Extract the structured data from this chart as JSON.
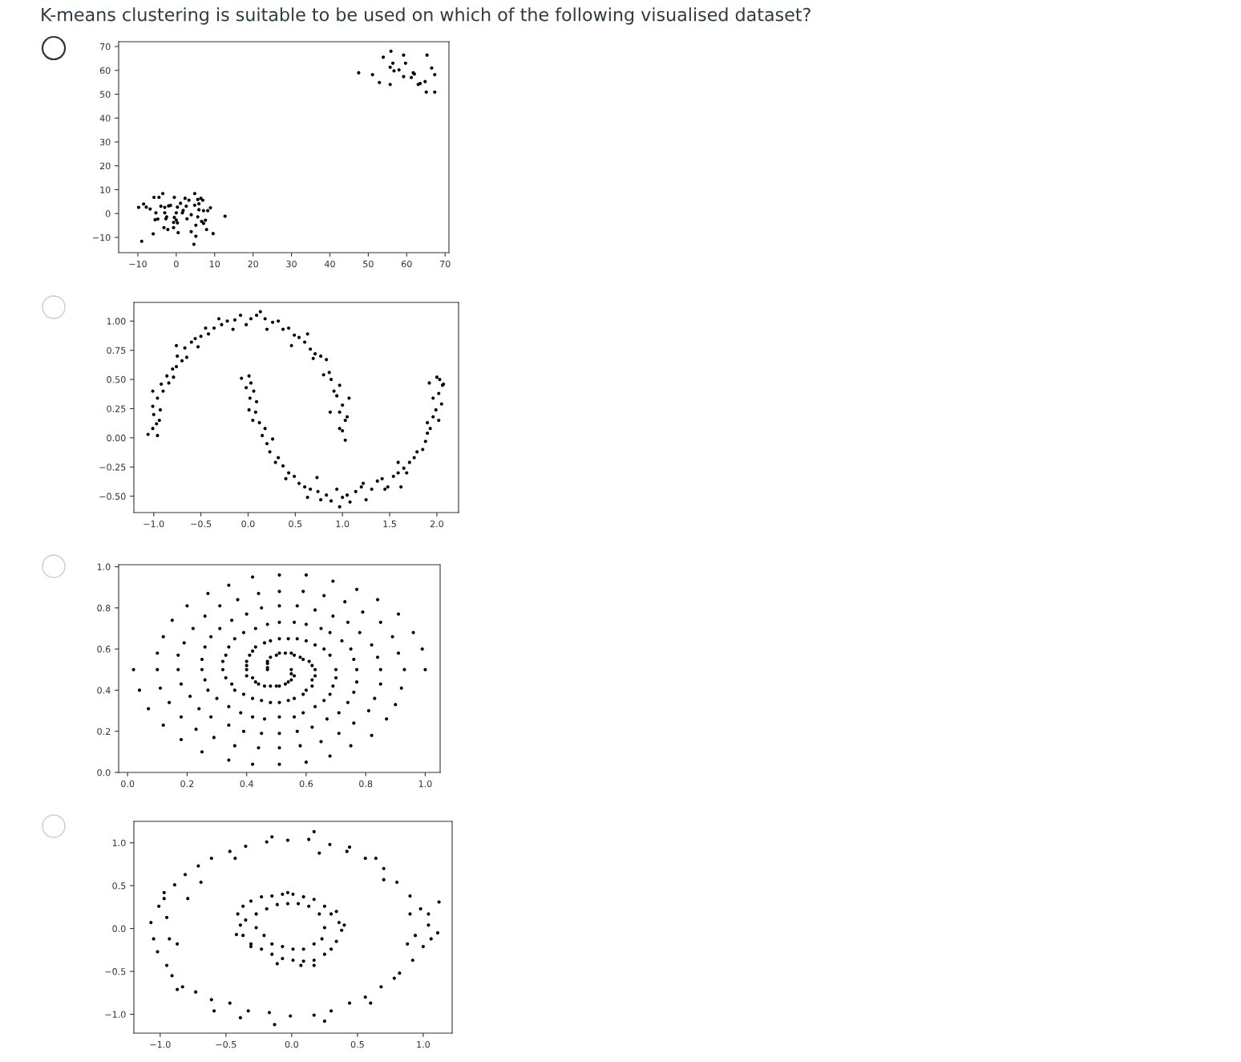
{
  "chart_data": [
    {
      "type": "scatter",
      "title": "K-means clustering is suitable to be used on which of the following visualised dataset?",
      "color": "#000000",
      "marker": "circle",
      "xlim": [
        -15.0,
        71.0
      ],
      "ylim": [
        -16.4,
        72.0
      ],
      "xticks": [
        {
          "value": -10,
          "label": "−10"
        },
        {
          "value": 0,
          "label": "0"
        },
        {
          "value": 10,
          "label": "10"
        },
        {
          "value": 20,
          "label": "20"
        },
        {
          "value": 30,
          "label": "30"
        },
        {
          "value": 40,
          "label": "40"
        },
        {
          "value": 50,
          "label": "50"
        },
        {
          "value": 60,
          "label": "60"
        },
        {
          "value": 70,
          "label": "70"
        }
      ],
      "yticks": [
        {
          "value": -10,
          "label": "−10"
        },
        {
          "value": 0,
          "label": "0"
        },
        {
          "value": 10,
          "label": "10"
        },
        {
          "value": 20,
          "label": "20"
        },
        {
          "value": 30,
          "label": "30"
        },
        {
          "value": 40,
          "label": "40"
        },
        {
          "value": 50,
          "label": "50"
        },
        {
          "value": 60,
          "label": "60"
        },
        {
          "value": 70,
          "label": "70"
        }
      ],
      "x": [
        47.5,
        51.1,
        52.9,
        53.9,
        55.7,
        55.7,
        55.9,
        56.4,
        56.7,
        58.0,
        59.2,
        59.2,
        59.7,
        61.2,
        61.7,
        62.0,
        63.0,
        63.5,
        64.8,
        65.1,
        65.3,
        66.5,
        67.3,
        67.3,
        -9.8,
        -9.0,
        -8.5,
        -7.8,
        -6.8,
        -6.0,
        -5.8,
        -5.5,
        -5.3,
        -4.8,
        -4.5,
        -4.0,
        -3.5,
        -3.2,
        -3.0,
        -3.0,
        -2.7,
        -2.5,
        -2.2,
        -2.0,
        -1.5,
        -0.7,
        -0.5,
        -0.5,
        -0.7,
        0.0,
        0.3,
        0.0,
        0.3,
        0.5,
        1.1,
        1.6,
        1.8,
        2.3,
        2.6,
        2.8,
        3.3,
        3.9,
        3.9,
        4.8,
        4.8,
        5.1,
        5.1,
        4.6,
        5.6,
        5.6,
        5.9,
        6.4,
        5.9,
        6.9,
        6.6,
        7.1,
        7.1,
        7.6,
        7.9,
        8.2,
        8.9,
        9.6,
        12.7
      ],
      "values": [
        59.0,
        58.2,
        54.9,
        65.5,
        61.3,
        54.1,
        68.0,
        63.0,
        59.8,
        60.2,
        66.4,
        57.4,
        63.0,
        57.0,
        59.0,
        58.5,
        54.1,
        54.5,
        55.3,
        50.9,
        66.4,
        61.0,
        58.2,
        50.9,
        2.6,
        -11.6,
        4.0,
        2.7,
        1.9,
        -8.5,
        6.8,
        -2.6,
        0.3,
        -2.3,
        6.8,
        3.1,
        8.4,
        -5.9,
        0.3,
        2.6,
        -2.2,
        -1.4,
        -6.7,
        3.2,
        3.4,
        -5.9,
        6.8,
        -1.6,
        -3.7,
        0.3,
        2.7,
        -2.7,
        -3.9,
        -8.0,
        4.3,
        0.3,
        1.3,
        6.4,
        3.1,
        -2.2,
        5.6,
        -0.5,
        -7.6,
        8.4,
        3.5,
        -4.9,
        -9.5,
        -12.9,
        5.9,
        -1.4,
        4.1,
        6.4,
        1.6,
        5.6,
        -3.3,
        -4.1,
        1.2,
        -2.8,
        -6.7,
        1.2,
        2.4,
        -8.4,
        -1.1
      ]
    },
    {
      "type": "scatter",
      "color": "#000000",
      "marker": "circle",
      "xlim": [
        -1.21,
        2.23
      ],
      "ylim": [
        -0.64,
        1.16
      ],
      "xticks": [
        {
          "value": -1.0,
          "label": "−1.0"
        },
        {
          "value": -0.5,
          "label": "−0.5"
        },
        {
          "value": 0.0,
          "label": "0.0"
        },
        {
          "value": 0.5,
          "label": "0.5"
        },
        {
          "value": 1.0,
          "label": "1.0"
        },
        {
          "value": 1.5,
          "label": "1.5"
        },
        {
          "value": 2.0,
          "label": "2.0"
        }
      ],
      "yticks": [
        {
          "value": -0.5,
          "label": "−0.50"
        },
        {
          "value": -0.25,
          "label": "−0.25"
        },
        {
          "value": 0.0,
          "label": "0.00"
        },
        {
          "value": 0.25,
          "label": "0.25"
        },
        {
          "value": 0.5,
          "label": "0.50"
        },
        {
          "value": 0.75,
          "label": "0.75"
        },
        {
          "value": 1.0,
          "label": "1.00"
        }
      ],
      "x": [
        -1.06,
        -1.01,
        -0.96,
        -0.97,
        -1.0,
        -0.94,
        -1.01,
        -0.93,
        -0.96,
        -0.9,
        -1.01,
        -0.92,
        -0.84,
        -0.86,
        -0.8,
        -0.79,
        -0.76,
        -0.7,
        -0.75,
        -0.65,
        -0.67,
        -0.6,
        -0.76,
        -0.56,
        -0.5,
        -0.53,
        -0.45,
        -0.42,
        -0.36,
        -0.28,
        -0.31,
        -0.22,
        -0.16,
        -0.14,
        -0.08,
        -0.02,
        0.03,
        0.09,
        0.13,
        0.18,
        0.2,
        0.26,
        0.32,
        0.37,
        0.43,
        0.49,
        0.46,
        0.54,
        0.6,
        0.63,
        0.66,
        0.71,
        0.69,
        0.77,
        0.83,
        0.8,
        0.86,
        0.88,
        0.91,
        0.97,
        0.94,
        1.07,
        1.0,
        0.87,
        0.97,
        1.03,
        1.0,
        1.03,
        0.97,
        1.05,
        -0.07,
        0.01,
        0.03,
        -0.02,
        0.06,
        0.02,
        0.09,
        0.01,
        0.08,
        0.05,
        0.12,
        0.18,
        0.15,
        0.2,
        0.26,
        0.23,
        0.32,
        0.29,
        0.37,
        0.43,
        0.4,
        0.49,
        0.54,
        0.6,
        0.66,
        0.63,
        0.74,
        0.77,
        0.83,
        0.88,
        0.94,
        1.0,
        1.08,
        1.05,
        1.14,
        1.2,
        1.25,
        1.22,
        1.31,
        1.37,
        1.42,
        1.48,
        1.54,
        1.59,
        1.62,
        1.65,
        1.71,
        1.76,
        1.79,
        1.85,
        1.88,
        1.9,
        1.93,
        1.9,
        1.96,
        2.02,
        1.99,
        2.05,
        1.96,
        2.02,
        2.06,
        2.03,
        1.92,
        2.0,
        2.07,
        1.59,
        1.68,
        1.45,
        0.97,
        0.73
      ],
      "values": [
        0.03,
        0.08,
        0.02,
        0.12,
        0.2,
        0.15,
        0.27,
        0.24,
        0.34,
        0.4,
        0.4,
        0.46,
        0.47,
        0.53,
        0.59,
        0.52,
        0.61,
        0.66,
        0.7,
        0.69,
        0.77,
        0.82,
        0.79,
        0.85,
        0.87,
        0.78,
        0.94,
        0.89,
        0.94,
        0.97,
        1.02,
        1.0,
        0.93,
        1.01,
        1.05,
        0.97,
        1.02,
        1.05,
        1.08,
        1.02,
        0.93,
        0.99,
        1.0,
        0.93,
        0.94,
        0.88,
        0.79,
        0.86,
        0.82,
        0.89,
        0.76,
        0.72,
        0.68,
        0.7,
        0.67,
        0.54,
        0.56,
        0.5,
        0.4,
        0.45,
        0.36,
        0.34,
        0.28,
        0.22,
        0.22,
        0.15,
        0.06,
        -0.02,
        0.08,
        0.18,
        0.51,
        0.53,
        0.47,
        0.43,
        0.4,
        0.34,
        0.31,
        0.24,
        0.22,
        0.15,
        0.13,
        0.08,
        0.02,
        -0.05,
        -0.01,
        -0.12,
        -0.17,
        -0.21,
        -0.24,
        -0.3,
        -0.35,
        -0.33,
        -0.39,
        -0.42,
        -0.44,
        -0.51,
        -0.46,
        -0.53,
        -0.49,
        -0.54,
        -0.44,
        -0.51,
        -0.55,
        -0.49,
        -0.46,
        -0.42,
        -0.53,
        -0.39,
        -0.44,
        -0.37,
        -0.35,
        -0.42,
        -0.33,
        -0.3,
        -0.42,
        -0.26,
        -0.21,
        -0.17,
        -0.12,
        -0.1,
        -0.03,
        0.04,
        0.08,
        0.13,
        0.18,
        0.15,
        0.24,
        0.29,
        0.34,
        0.38,
        0.45,
        0.5,
        0.47,
        0.52,
        0.46,
        -0.21,
        -0.3,
        -0.44,
        -0.59,
        -0.34
      ]
    },
    {
      "type": "scatter",
      "color": "#000000",
      "marker": "circle",
      "xlim": [
        -0.03,
        1.05
      ],
      "ylim": [
        0.0,
        1.01
      ],
      "xticks": [
        {
          "value": 0.0,
          "label": "0.0"
        },
        {
          "value": 0.2,
          "label": "0.2"
        },
        {
          "value": 0.4,
          "label": "0.4"
        },
        {
          "value": 0.6,
          "label": "0.6"
        },
        {
          "value": 0.8,
          "label": "0.8"
        },
        {
          "value": 1.0,
          "label": "1.0"
        }
      ],
      "yticks": [
        {
          "value": 0.0,
          "label": "0.0"
        },
        {
          "value": 0.2,
          "label": "0.2"
        },
        {
          "value": 0.4,
          "label": "0.4"
        },
        {
          "value": 0.6,
          "label": "0.6"
        },
        {
          "value": 0.8,
          "label": "0.8"
        },
        {
          "value": 1.0,
          "label": "1.0"
        }
      ],
      "x": [
        0.42,
        0.51,
        0.6,
        0.69,
        0.34,
        0.77,
        0.27,
        0.44,
        0.51,
        0.59,
        0.66,
        0.84,
        0.37,
        0.73,
        0.2,
        0.31,
        0.45,
        0.51,
        0.57,
        0.63,
        0.79,
        0.4,
        0.69,
        0.91,
        0.15,
        0.26,
        0.35,
        0.85,
        0.47,
        0.51,
        0.56,
        0.6,
        0.74,
        0.22,
        0.31,
        0.43,
        0.65,
        0.96,
        0.39,
        0.68,
        0.78,
        0.12,
        0.28,
        0.36,
        0.89,
        0.19,
        0.48,
        0.51,
        0.54,
        0.57,
        0.6,
        0.72,
        0.82,
        0.46,
        0.43,
        0.34,
        0.63,
        0.26,
        0.42,
        0.66,
        0.75,
        0.99,
        0.1,
        0.41,
        0.33,
        0.68,
        0.91,
        0.17,
        0.51,
        0.53,
        0.55,
        0.56,
        0.58,
        0.59,
        0.61,
        0.84,
        0.5,
        0.48,
        0.47,
        0.47,
        0.47,
        0.47,
        0.25,
        0.4,
        0.32,
        0.62,
        0.76,
        0.02,
        0.1,
        0.17,
        0.25,
        0.32,
        0.4,
        0.63,
        0.7,
        0.77,
        0.85,
        0.93,
        1.0,
        0.55,
        0.55,
        0.56,
        0.55,
        0.54,
        0.53,
        0.4,
        0.4,
        0.63,
        0.7,
        0.62,
        0.33,
        0.26,
        0.18,
        0.11,
        0.04,
        0.85,
        0.92,
        0.77,
        0.42,
        0.43,
        0.44,
        0.46,
        0.48,
        0.5,
        0.51,
        0.62,
        0.6,
        0.35,
        0.36,
        0.39,
        0.42,
        0.45,
        0.48,
        0.51,
        0.54,
        0.56,
        0.59,
        0.69,
        0.68,
        0.27,
        0.21,
        0.14,
        0.07,
        0.76,
        0.83,
        0.9,
        0.3,
        0.34,
        0.38,
        0.42,
        0.46,
        0.51,
        0.56,
        0.59,
        0.63,
        0.66,
        0.74,
        0.24,
        0.18,
        0.12,
        0.71,
        0.81,
        0.87,
        0.28,
        0.34,
        0.39,
        0.45,
        0.51,
        0.57,
        0.62,
        0.67,
        0.76,
        0.23,
        0.18,
        0.29,
        0.36,
        0.44,
        0.51,
        0.58,
        0.65,
        0.71,
        0.82,
        0.75,
        0.25,
        0.34,
        0.42,
        0.51,
        0.6,
        0.68
      ],
      "values": [
        0.95,
        0.96,
        0.96,
        0.93,
        0.91,
        0.89,
        0.87,
        0.87,
        0.88,
        0.88,
        0.86,
        0.84,
        0.84,
        0.83,
        0.81,
        0.81,
        0.8,
        0.81,
        0.81,
        0.79,
        0.78,
        0.77,
        0.76,
        0.77,
        0.74,
        0.76,
        0.74,
        0.73,
        0.72,
        0.73,
        0.73,
        0.72,
        0.73,
        0.7,
        0.7,
        0.7,
        0.7,
        0.68,
        0.68,
        0.68,
        0.68,
        0.66,
        0.66,
        0.65,
        0.66,
        0.63,
        0.64,
        0.65,
        0.65,
        0.65,
        0.64,
        0.64,
        0.62,
        0.63,
        0.61,
        0.61,
        0.62,
        0.61,
        0.59,
        0.6,
        0.6,
        0.6,
        0.58,
        0.57,
        0.57,
        0.57,
        0.58,
        0.57,
        0.58,
        0.58,
        0.58,
        0.57,
        0.56,
        0.55,
        0.54,
        0.56,
        0.57,
        0.56,
        0.54,
        0.53,
        0.51,
        0.5,
        0.55,
        0.54,
        0.54,
        0.52,
        0.55,
        0.5,
        0.5,
        0.5,
        0.5,
        0.5,
        0.5,
        0.5,
        0.5,
        0.5,
        0.5,
        0.5,
        0.5,
        0.5,
        0.48,
        0.47,
        0.45,
        0.44,
        0.43,
        0.52,
        0.47,
        0.47,
        0.46,
        0.45,
        0.46,
        0.45,
        0.43,
        0.41,
        0.4,
        0.43,
        0.41,
        0.44,
        0.46,
        0.44,
        0.43,
        0.42,
        0.42,
        0.42,
        0.42,
        0.42,
        0.4,
        0.43,
        0.4,
        0.38,
        0.36,
        0.35,
        0.34,
        0.34,
        0.35,
        0.36,
        0.38,
        0.42,
        0.38,
        0.4,
        0.37,
        0.34,
        0.31,
        0.39,
        0.36,
        0.33,
        0.36,
        0.32,
        0.29,
        0.27,
        0.26,
        0.27,
        0.27,
        0.29,
        0.32,
        0.35,
        0.34,
        0.31,
        0.27,
        0.23,
        0.29,
        0.3,
        0.26,
        0.27,
        0.23,
        0.2,
        0.19,
        0.19,
        0.2,
        0.22,
        0.26,
        0.24,
        0.21,
        0.16,
        0.17,
        0.13,
        0.12,
        0.12,
        0.13,
        0.15,
        0.19,
        0.18,
        0.13,
        0.1,
        0.06,
        0.04,
        0.04,
        0.05,
        0.08
      ]
    },
    {
      "type": "scatter",
      "color": "#000000",
      "marker": "circle",
      "xlim": [
        -1.2,
        1.22
      ],
      "ylim": [
        -1.22,
        1.25
      ],
      "xticks": [
        {
          "value": -1.0,
          "label": "−1.0"
        },
        {
          "value": -0.5,
          "label": "−0.5"
        },
        {
          "value": 0.0,
          "label": "0.0"
        },
        {
          "value": 0.5,
          "label": "0.5"
        },
        {
          "value": 1.0,
          "label": "1.0"
        }
      ],
      "yticks": [
        {
          "value": -1.0,
          "label": "−1.0"
        },
        {
          "value": -0.5,
          "label": "−0.5"
        },
        {
          "value": 0.0,
          "label": "0.0"
        },
        {
          "value": 0.5,
          "label": "0.5"
        },
        {
          "value": 1.0,
          "label": "1.0"
        }
      ],
      "x": [
        -1.07,
        -1.05,
        -1.01,
        -1.02,
        -0.97,
        -0.95,
        -0.89,
        -0.91,
        -0.81,
        -0.83,
        -0.71,
        -0.73,
        -0.61,
        -0.61,
        -0.47,
        -0.47,
        -0.35,
        -0.33,
        -0.19,
        -0.17,
        -0.03,
        -0.01,
        0.13,
        0.17,
        0.29,
        0.3,
        0.42,
        0.44,
        0.56,
        0.56,
        0.7,
        0.68,
        0.8,
        0.82,
        0.9,
        0.92,
        0.98,
        1.0,
        1.04,
        1.06,
        1.12,
        1.11,
        0.9,
        0.88,
        -0.95,
        -0.93,
        -0.87,
        -0.97,
        -0.79,
        -0.69,
        -0.43,
        -0.15,
        0.17,
        0.21,
        0.44,
        0.7,
        0.64,
        0.94,
        0.78,
        0.6,
        0.25,
        -0.13,
        -0.39,
        -0.59,
        -0.87,
        1.04,
        -0.41,
        -0.37,
        -0.31,
        -0.23,
        -0.15,
        -0.07,
        0.01,
        0.09,
        0.17,
        0.25,
        0.3,
        0.36,
        0.38,
        0.34,
        0.3,
        0.25,
        0.17,
        0.09,
        0.01,
        -0.07,
        -0.15,
        -0.23,
        -0.31,
        -0.37,
        -0.39,
        -0.42,
        -0.35,
        -0.27,
        -0.19,
        -0.11,
        -0.03,
        0.05,
        0.13,
        0.21,
        0.25,
        0.23,
        0.17,
        0.09,
        0.01,
        -0.07,
        -0.15,
        -0.21,
        -0.27,
        0.07,
        -0.11,
        0.17,
        0.34,
        -0.03,
        -0.31,
        0.4
      ],
      "values": [
        0.07,
        -0.12,
        0.26,
        -0.27,
        0.42,
        -0.43,
        0.51,
        -0.55,
        0.63,
        -0.68,
        0.73,
        -0.74,
        0.82,
        -0.83,
        0.9,
        -0.87,
        0.96,
        -0.96,
        1.01,
        -0.98,
        1.03,
        -1.02,
        1.04,
        -1.01,
        0.98,
        -0.96,
        0.9,
        -0.87,
        0.82,
        -0.8,
        0.7,
        -0.68,
        0.54,
        -0.52,
        0.38,
        -0.37,
        0.23,
        -0.21,
        0.04,
        -0.12,
        0.31,
        -0.05,
        0.17,
        -0.18,
        0.13,
        -0.12,
        -0.18,
        0.35,
        0.35,
        0.54,
        0.82,
        1.07,
        1.13,
        0.88,
        0.95,
        0.57,
        0.82,
        -0.08,
        -0.58,
        -0.87,
        -1.08,
        -1.12,
        -1.04,
        -0.96,
        -0.71,
        0.17,
        0.17,
        0.26,
        0.32,
        0.37,
        0.38,
        0.4,
        0.4,
        0.37,
        0.34,
        0.26,
        0.17,
        0.07,
        -0.02,
        -0.15,
        -0.24,
        -0.3,
        -0.37,
        -0.38,
        -0.37,
        -0.35,
        -0.3,
        -0.24,
        -0.18,
        -0.08,
        0.04,
        -0.07,
        0.1,
        0.17,
        0.23,
        0.28,
        0.29,
        0.29,
        0.26,
        0.17,
        0.01,
        -0.12,
        -0.18,
        -0.24,
        -0.24,
        -0.21,
        -0.18,
        -0.08,
        0.01,
        -0.43,
        -0.41,
        -0.43,
        0.2,
        0.42,
        -0.21,
        0.04
      ]
    }
  ]
}
